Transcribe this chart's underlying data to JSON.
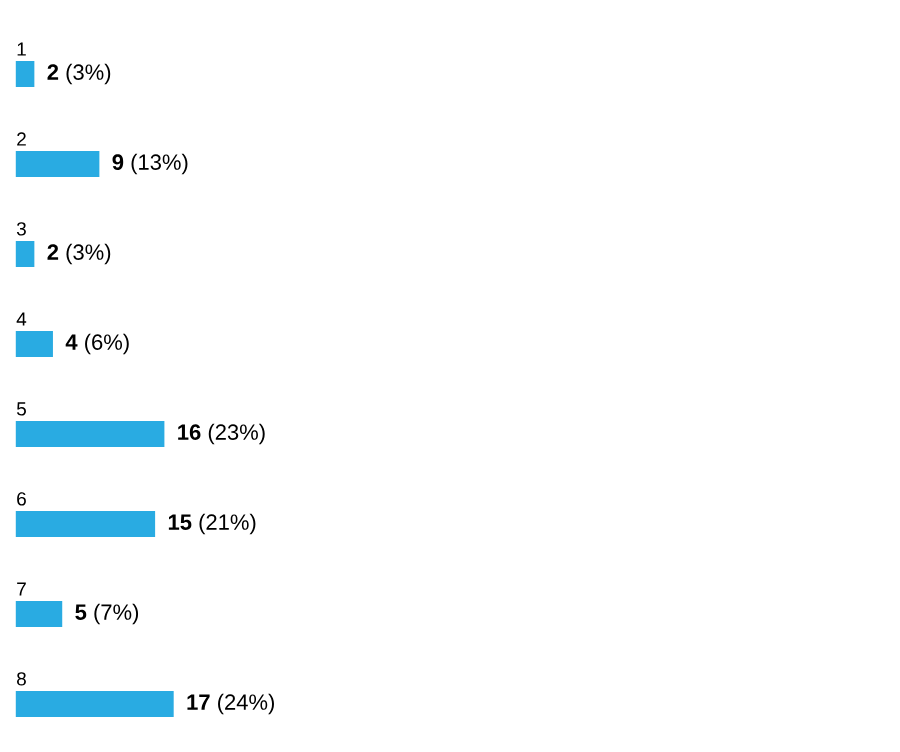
{
  "chart_data": {
    "type": "bar",
    "orientation": "horizontal",
    "categories": [
      "1",
      "2",
      "3",
      "4",
      "5",
      "6",
      "7",
      "8"
    ],
    "values": [
      2,
      9,
      2,
      4,
      16,
      15,
      5,
      17
    ],
    "value_labels": [
      "**2** (3%)",
      "**9** (13%)",
      "**2** (3%)",
      "**4** (6%)",
      "**16** (23%)",
      "**15** (21%)",
      "**5** (7%)",
      "**17** (24%)"
    ],
    "color": "#29abe2"
  }
}
